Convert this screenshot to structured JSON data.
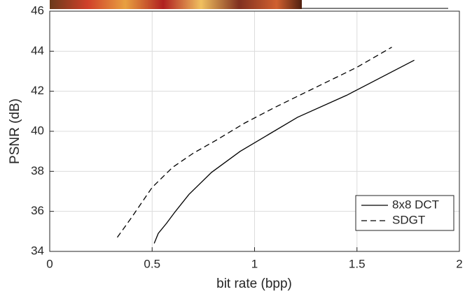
{
  "chart_data": {
    "type": "line",
    "xlabel": "bit rate (bpp)",
    "ylabel": "PSNR (dB)",
    "xlim": [
      0,
      2
    ],
    "xticks": [
      0,
      0.5,
      1,
      1.5,
      2
    ],
    "ylim": [
      34,
      46
    ],
    "yticks": [
      34,
      36,
      38,
      40,
      42,
      44,
      46
    ],
    "grid": true,
    "legend": "lower right",
    "series": [
      {
        "name": "8x8 DCT",
        "color": "#000000",
        "dash": "solid",
        "x": [
          0.51,
          0.53,
          0.57,
          0.61,
          0.68,
          0.79,
          0.93,
          1.21,
          1.45,
          1.78
        ],
        "values": [
          34.4,
          34.9,
          35.4,
          35.95,
          36.85,
          37.95,
          39.0,
          40.7,
          41.8,
          43.55
        ]
      },
      {
        "name": "SDGT",
        "color": "#000000",
        "dash": "dashed",
        "x": [
          0.33,
          0.4,
          0.5,
          0.6,
          0.7,
          0.82,
          0.95,
          1.1,
          1.3,
          1.5,
          1.67
        ],
        "values": [
          34.7,
          35.7,
          37.2,
          38.2,
          38.9,
          39.6,
          40.4,
          41.2,
          42.2,
          43.2,
          44.2
        ]
      }
    ]
  }
}
